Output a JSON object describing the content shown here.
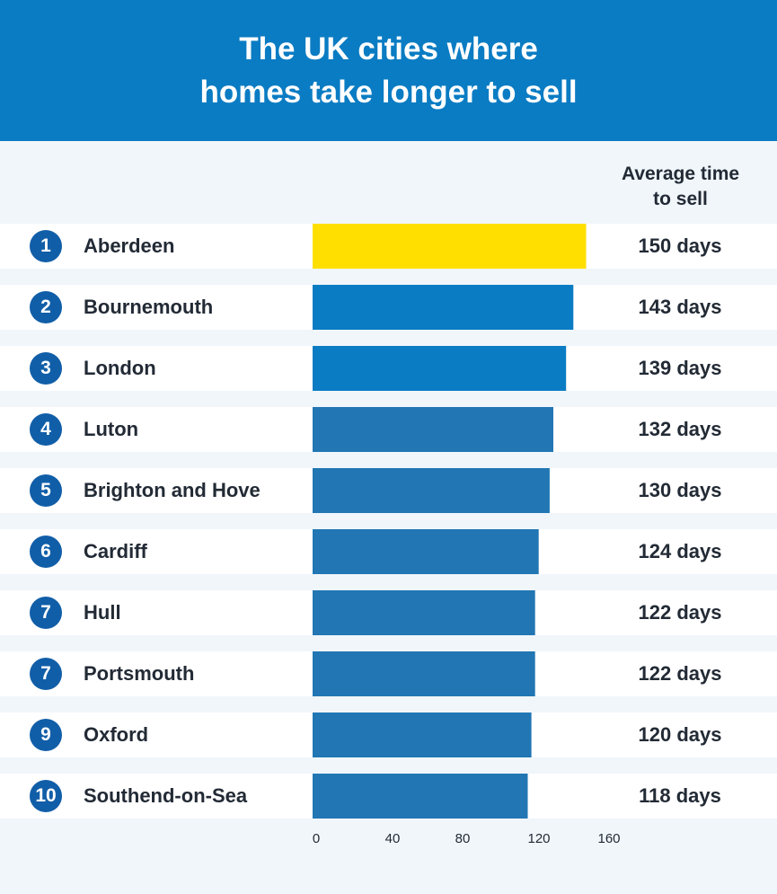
{
  "header": {
    "title_line1": "The UK cities where",
    "title_line2": "homes take longer to sell"
  },
  "column_header": {
    "line1": "Average time",
    "line2": "to sell"
  },
  "colors": {
    "header_bg": "#0a7cc3",
    "highlight_bar": "#ffdf00",
    "bright_bar": "#0a7cc3",
    "bar": "#2176b3",
    "badge": "#115ea8"
  },
  "chart_data": {
    "type": "bar",
    "orientation": "horizontal",
    "title": "The UK cities where homes take longer to sell",
    "value_column_label": "Average time to sell",
    "ranks": [
      "1",
      "2",
      "3",
      "4",
      "5",
      "6",
      "7",
      "7",
      "9",
      "10"
    ],
    "categories": [
      "Aberdeen",
      "Bournemouth",
      "London",
      "Luton",
      "Brighton and Hove",
      "Cardiff",
      "Hull",
      "Portsmouth",
      "Oxford",
      "Southend-on-Sea"
    ],
    "values": [
      150,
      143,
      139,
      132,
      130,
      124,
      122,
      122,
      120,
      118
    ],
    "value_labels": [
      "150 days",
      "143 days",
      "139 days",
      "132 days",
      "130 days",
      "124 days",
      "122 days",
      "122 days",
      "120 days",
      "118 days"
    ],
    "bar_colors": [
      "#ffdf00",
      "#0a7cc3",
      "#0a7cc3",
      "#2176b3",
      "#2176b3",
      "#2176b3",
      "#2176b3",
      "#2176b3",
      "#2176b3",
      "#2176b3"
    ],
    "x_ticks": [
      "0",
      "40",
      "80",
      "120",
      "160"
    ],
    "xlim": [
      0,
      160
    ],
    "grid": false
  }
}
